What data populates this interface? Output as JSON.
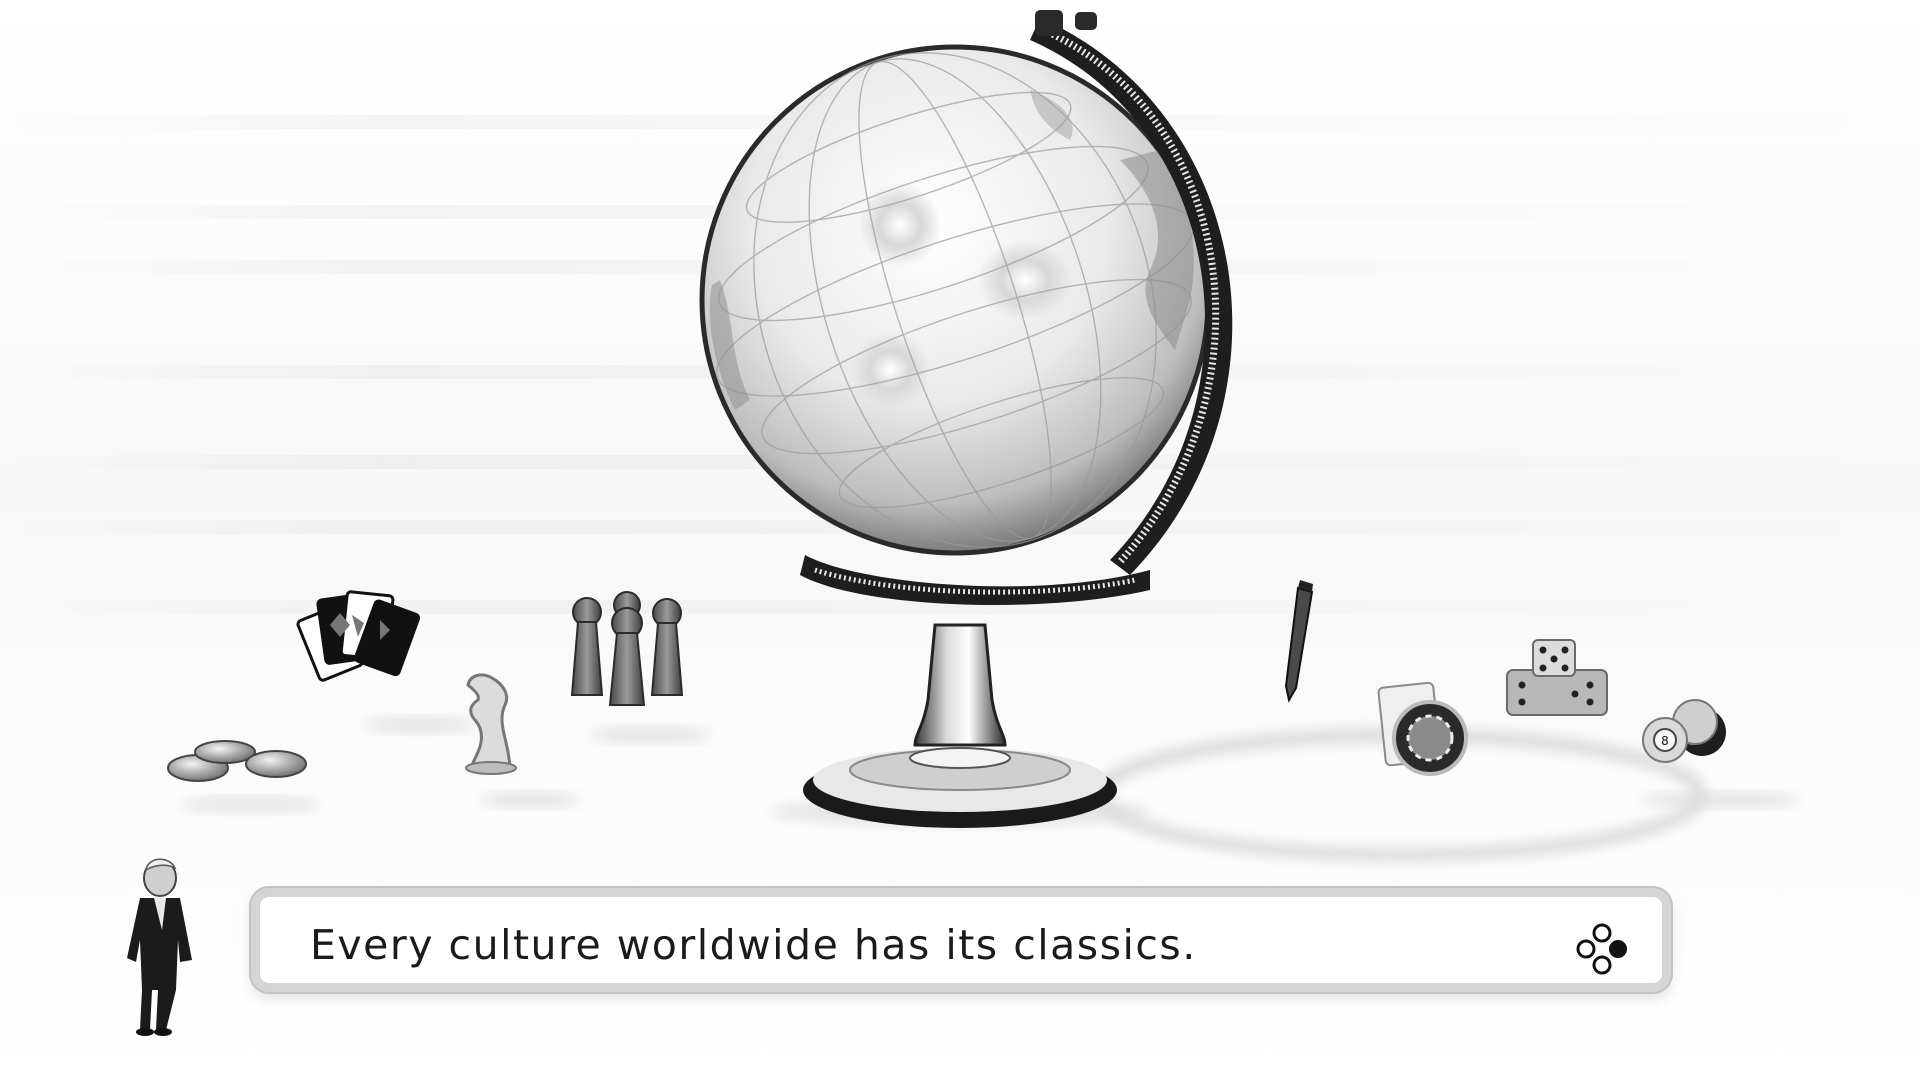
{
  "dialog": {
    "text": "Every culture worldwide has its classics.",
    "advance_icon": "button-cluster-icon"
  },
  "scene": {
    "items": [
      {
        "name": "globe"
      },
      {
        "name": "playing-cards"
      },
      {
        "name": "pawns"
      },
      {
        "name": "chess-knight"
      },
      {
        "name": "mancala-stones"
      },
      {
        "name": "pencil"
      },
      {
        "name": "poker-chip-card"
      },
      {
        "name": "dice"
      },
      {
        "name": "billiard-balls"
      },
      {
        "name": "host-character"
      }
    ]
  },
  "colors": {
    "background": "#f8f8f8",
    "dialog_border": "#d5d5d5",
    "text": "#1b1b1b"
  }
}
